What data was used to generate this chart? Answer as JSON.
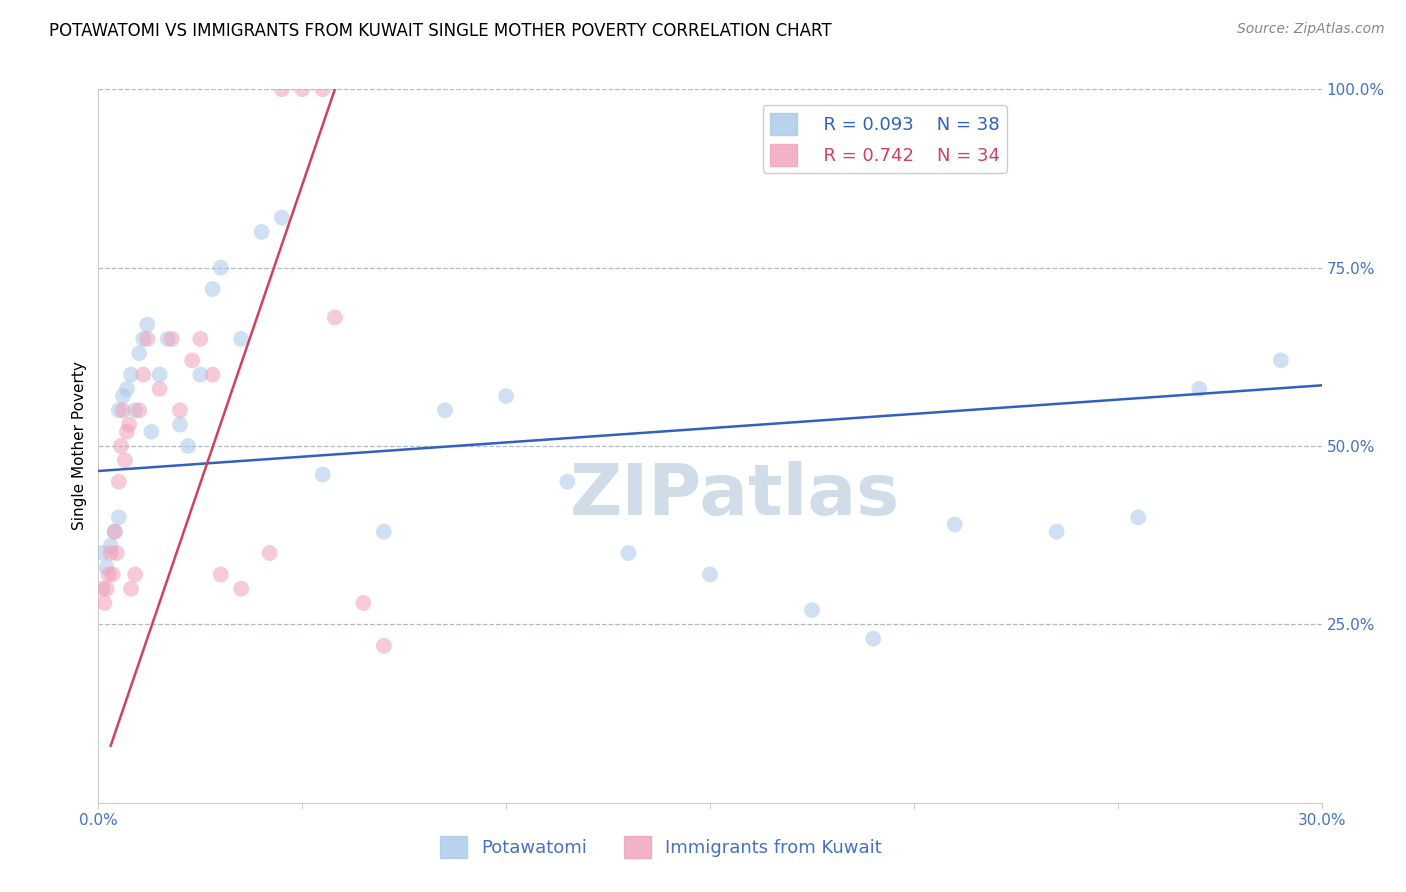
{
  "title": "POTAWATOMI VS IMMIGRANTS FROM KUWAIT SINGLE MOTHER POVERTY CORRELATION CHART",
  "source": "Source: ZipAtlas.com",
  "ylabel": "Single Mother Poverty",
  "xlim": [
    0.0,
    30.0
  ],
  "ylim": [
    0.0,
    100.0
  ],
  "legend_entry1": {
    "label": "Potawatomi",
    "R": "0.093",
    "N": "38"
  },
  "legend_entry2": {
    "label": "Immigrants from Kuwait",
    "R": "0.742",
    "N": "34"
  },
  "watermark": "ZIPatlas",
  "potawatomi_x": [
    0.1,
    0.2,
    0.3,
    0.4,
    0.5,
    0.5,
    0.6,
    0.7,
    0.8,
    0.9,
    1.0,
    1.1,
    1.2,
    1.3,
    1.5,
    1.7,
    2.0,
    2.2,
    2.5,
    2.8,
    3.0,
    3.5,
    4.0,
    4.5,
    5.5,
    7.0,
    8.5,
    10.0,
    11.5,
    13.0,
    15.0,
    17.5,
    19.0,
    21.0,
    23.5,
    25.5,
    27.0,
    29.0
  ],
  "potawatomi_y": [
    35,
    33,
    36,
    38,
    40,
    55,
    57,
    58,
    60,
    55,
    63,
    65,
    67,
    52,
    60,
    65,
    53,
    50,
    60,
    72,
    75,
    65,
    80,
    82,
    46,
    38,
    55,
    57,
    45,
    35,
    32,
    27,
    23,
    39,
    38,
    40,
    58,
    62
  ],
  "kuwait_x": [
    0.1,
    0.15,
    0.2,
    0.25,
    0.3,
    0.35,
    0.4,
    0.45,
    0.5,
    0.55,
    0.6,
    0.65,
    0.7,
    0.75,
    0.8,
    0.9,
    1.0,
    1.1,
    1.2,
    1.5,
    1.8,
    2.0,
    2.3,
    2.5,
    2.8,
    3.0,
    3.5,
    4.2,
    4.5,
    5.0,
    5.5,
    5.8,
    6.5,
    7.0
  ],
  "kuwait_y": [
    30,
    28,
    30,
    32,
    35,
    32,
    38,
    35,
    45,
    50,
    55,
    48,
    52,
    53,
    30,
    32,
    55,
    60,
    65,
    58,
    65,
    55,
    62,
    65,
    60,
    32,
    30,
    35,
    100,
    100,
    100,
    68,
    28,
    22
  ],
  "blue_line_x": [
    0.0,
    30.0
  ],
  "blue_line_y": [
    46.5,
    58.5
  ],
  "pink_line_x": [
    0.3,
    5.8
  ],
  "pink_line_y": [
    8.0,
    100.0
  ],
  "background_color": "#ffffff",
  "grid_color": "#b0b8c8",
  "scatter_alpha": 0.55,
  "scatter_size": 130,
  "blue_color": "#a8c8e8",
  "pink_color": "#f0a0b8",
  "blue_line_color": "#3060c0",
  "pink_line_color": "#d04060",
  "title_fontsize": 12,
  "source_fontsize": 10,
  "axis_label_fontsize": 11,
  "tick_fontsize": 11,
  "legend_fontsize": 13,
  "watermark_color": "#d0dce8",
  "watermark_fontsize": 52
}
